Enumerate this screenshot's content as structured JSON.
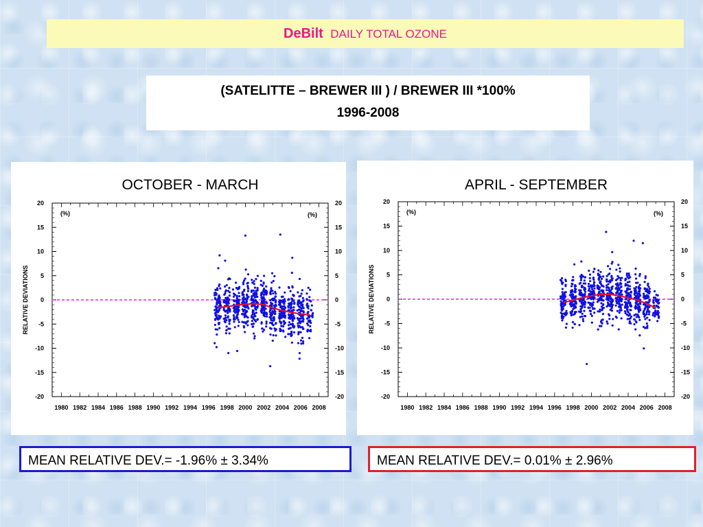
{
  "header": {
    "station": "DeBilt",
    "subtitle": "DAILY TOTAL OZONE"
  },
  "formula": {
    "text": "(SATELITTE – BREWER  III ) / BREWER III *100%",
    "years": "1996-2008"
  },
  "colors": {
    "points": "#1010e0",
    "trend": "#e01030",
    "zero_line": "#e020e0",
    "left_box_border": "#1a1ad0",
    "right_box_border": "#e0202a",
    "title_bg": "#fbfab8",
    "title_text": "#e8178d"
  },
  "stats": {
    "left": "MEAN RELATIVE DEV.= -1.96% ± 3.34%",
    "right": "MEAN RELATIVE DEV.= 0.01% ± 2.96%"
  },
  "chart_data": [
    {
      "type": "scatter",
      "title": "OCTOBER - MARCH",
      "ylabel": "RELATIVE DEVIATIONS",
      "unit_label": "(%)",
      "xlim": [
        1979,
        2009
      ],
      "ylim": [
        -20,
        20
      ],
      "xticks": [
        1980,
        1982,
        1984,
        1986,
        1988,
        1990,
        1992,
        1994,
        1996,
        1998,
        2000,
        2002,
        2004,
        2006,
        2008
      ],
      "yticks": [
        20,
        15,
        10,
        5,
        0,
        -5,
        -10,
        -15,
        -20
      ],
      "reference_line_y": 0,
      "point_years": [
        1997,
        1998,
        1999,
        2000,
        2001,
        2002,
        2003,
        2004,
        2005,
        2006,
        2007
      ],
      "point_distribution": {
        "1997": {
          "mean": -1.5,
          "spread": 4.5,
          "n": 80
        },
        "1998": {
          "mean": -1.3,
          "spread": 4.0,
          "n": 80
        },
        "1999": {
          "mean": -1.0,
          "spread": 3.8,
          "n": 80
        },
        "2000": {
          "mean": -0.8,
          "spread": 4.2,
          "n": 90
        },
        "2001": {
          "mean": -0.7,
          "spread": 4.5,
          "n": 90
        },
        "2002": {
          "mean": -1.1,
          "spread": 4.3,
          "n": 90
        },
        "2003": {
          "mean": -1.8,
          "spread": 4.4,
          "n": 90
        },
        "2004": {
          "mean": -2.3,
          "spread": 4.2,
          "n": 90
        },
        "2005": {
          "mean": -2.6,
          "spread": 4.3,
          "n": 90
        },
        "2006": {
          "mean": -2.9,
          "spread": 4.0,
          "n": 80
        },
        "2007": {
          "mean": -3.1,
          "spread": 3.0,
          "n": 50
        }
      },
      "outliers": [
        {
          "x": 2000.0,
          "y": 13.3
        },
        {
          "x": 2003.8,
          "y": 13.5
        },
        {
          "x": 1997.2,
          "y": 9.2
        },
        {
          "x": 1997.8,
          "y": 8.1
        },
        {
          "x": 2005.1,
          "y": 8.7
        },
        {
          "x": 2002.7,
          "y": -13.7
        },
        {
          "x": 2005.9,
          "y": -11.0
        }
      ],
      "trend": {
        "x": [
          1997,
          1998,
          1999,
          2000,
          2001,
          2002,
          2003,
          2004,
          2005,
          2006,
          2007
        ],
        "y": [
          -1.6,
          -1.4,
          -1.1,
          -0.9,
          -0.8,
          -1.0,
          -1.7,
          -2.2,
          -2.6,
          -2.9,
          -3.1
        ]
      }
    },
    {
      "type": "scatter",
      "title": "APRIL - SEPTEMBER",
      "ylabel": "RELATIVE DEVIATIONS",
      "unit_label": "(%)",
      "xlim": [
        1979,
        2009
      ],
      "ylim": [
        -20,
        20
      ],
      "xticks": [
        1980,
        1982,
        1984,
        1986,
        1988,
        1990,
        1992,
        1994,
        1996,
        1998,
        2000,
        2002,
        2004,
        2006,
        2008
      ],
      "yticks": [
        20,
        15,
        10,
        5,
        0,
        -5,
        -10,
        -15,
        -20
      ],
      "reference_line_y": 0,
      "point_years": [
        1997,
        1998,
        1999,
        2000,
        2001,
        2002,
        2003,
        2004,
        2005,
        2006,
        2007
      ],
      "point_distribution": {
        "1997": {
          "mean": -0.7,
          "spread": 3.8,
          "n": 80
        },
        "1998": {
          "mean": -0.2,
          "spread": 4.0,
          "n": 90
        },
        "1999": {
          "mean": 0.3,
          "spread": 4.0,
          "n": 90
        },
        "2000": {
          "mean": 0.7,
          "spread": 4.3,
          "n": 90
        },
        "2001": {
          "mean": 1.0,
          "spread": 4.2,
          "n": 90
        },
        "2002": {
          "mean": 1.0,
          "spread": 4.1,
          "n": 90
        },
        "2003": {
          "mean": 0.7,
          "spread": 4.0,
          "n": 90
        },
        "2004": {
          "mean": 0.3,
          "spread": 4.2,
          "n": 90
        },
        "2005": {
          "mean": -0.2,
          "spread": 4.0,
          "n": 90
        },
        "2006": {
          "mean": -0.9,
          "spread": 3.8,
          "n": 80
        },
        "2007": {
          "mean": -1.8,
          "spread": 2.5,
          "n": 50
        }
      },
      "outliers": [
        {
          "x": 2001.6,
          "y": 13.8
        },
        {
          "x": 2004.6,
          "y": 12.0
        },
        {
          "x": 2005.6,
          "y": 11.5
        },
        {
          "x": 1999.5,
          "y": -13.3
        },
        {
          "x": 2005.7,
          "y": -10.1
        }
      ],
      "trend": {
        "x": [
          1997,
          1998,
          1999,
          2000,
          2001,
          2002,
          2003,
          2004,
          2005,
          2006,
          2007
        ],
        "y": [
          -0.7,
          -0.2,
          0.3,
          0.7,
          1.0,
          1.0,
          0.7,
          0.3,
          -0.2,
          -0.9,
          -1.8
        ]
      }
    }
  ]
}
